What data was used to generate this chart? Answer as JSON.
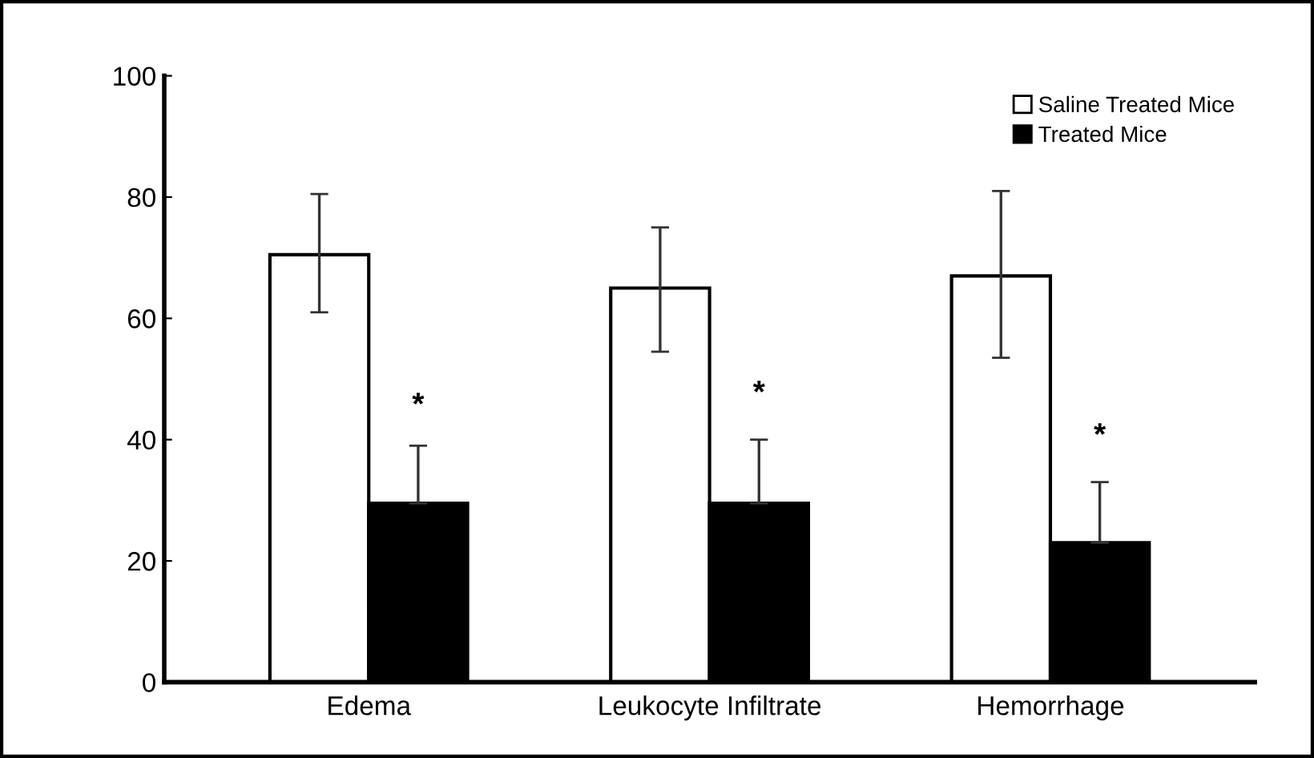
{
  "chart_data": {
    "type": "bar",
    "categories": [
      "Edema",
      "Leukocyte Infiltrate",
      "Hemorrhage"
    ],
    "series": [
      {
        "name": "Saline Treated Mice",
        "color": "#ffffff",
        "values": [
          70.5,
          65,
          67
        ],
        "errors": [
          [
            61,
            80.5
          ],
          [
            54.5,
            75
          ],
          [
            53.5,
            81
          ]
        ]
      },
      {
        "name": "Treated Mice",
        "color": "#000000",
        "values": [
          29.5,
          29.5,
          23
        ],
        "errors": [
          [
            29.5,
            39
          ],
          [
            29.5,
            40
          ],
          [
            23,
            33
          ]
        ]
      }
    ],
    "ylim": [
      0,
      100
    ],
    "yticks": [
      0,
      20,
      40,
      60,
      80,
      100
    ],
    "annotations": [
      {
        "text": "*",
        "x": "Edema",
        "y": 45.5
      },
      {
        "text": "*",
        "x": "Leukocyte Infiltrate",
        "y": 47.5
      },
      {
        "text": "*",
        "x": "Hemorrhage",
        "y": 40.5
      }
    ],
    "grid": false,
    "legend": "top right"
  }
}
